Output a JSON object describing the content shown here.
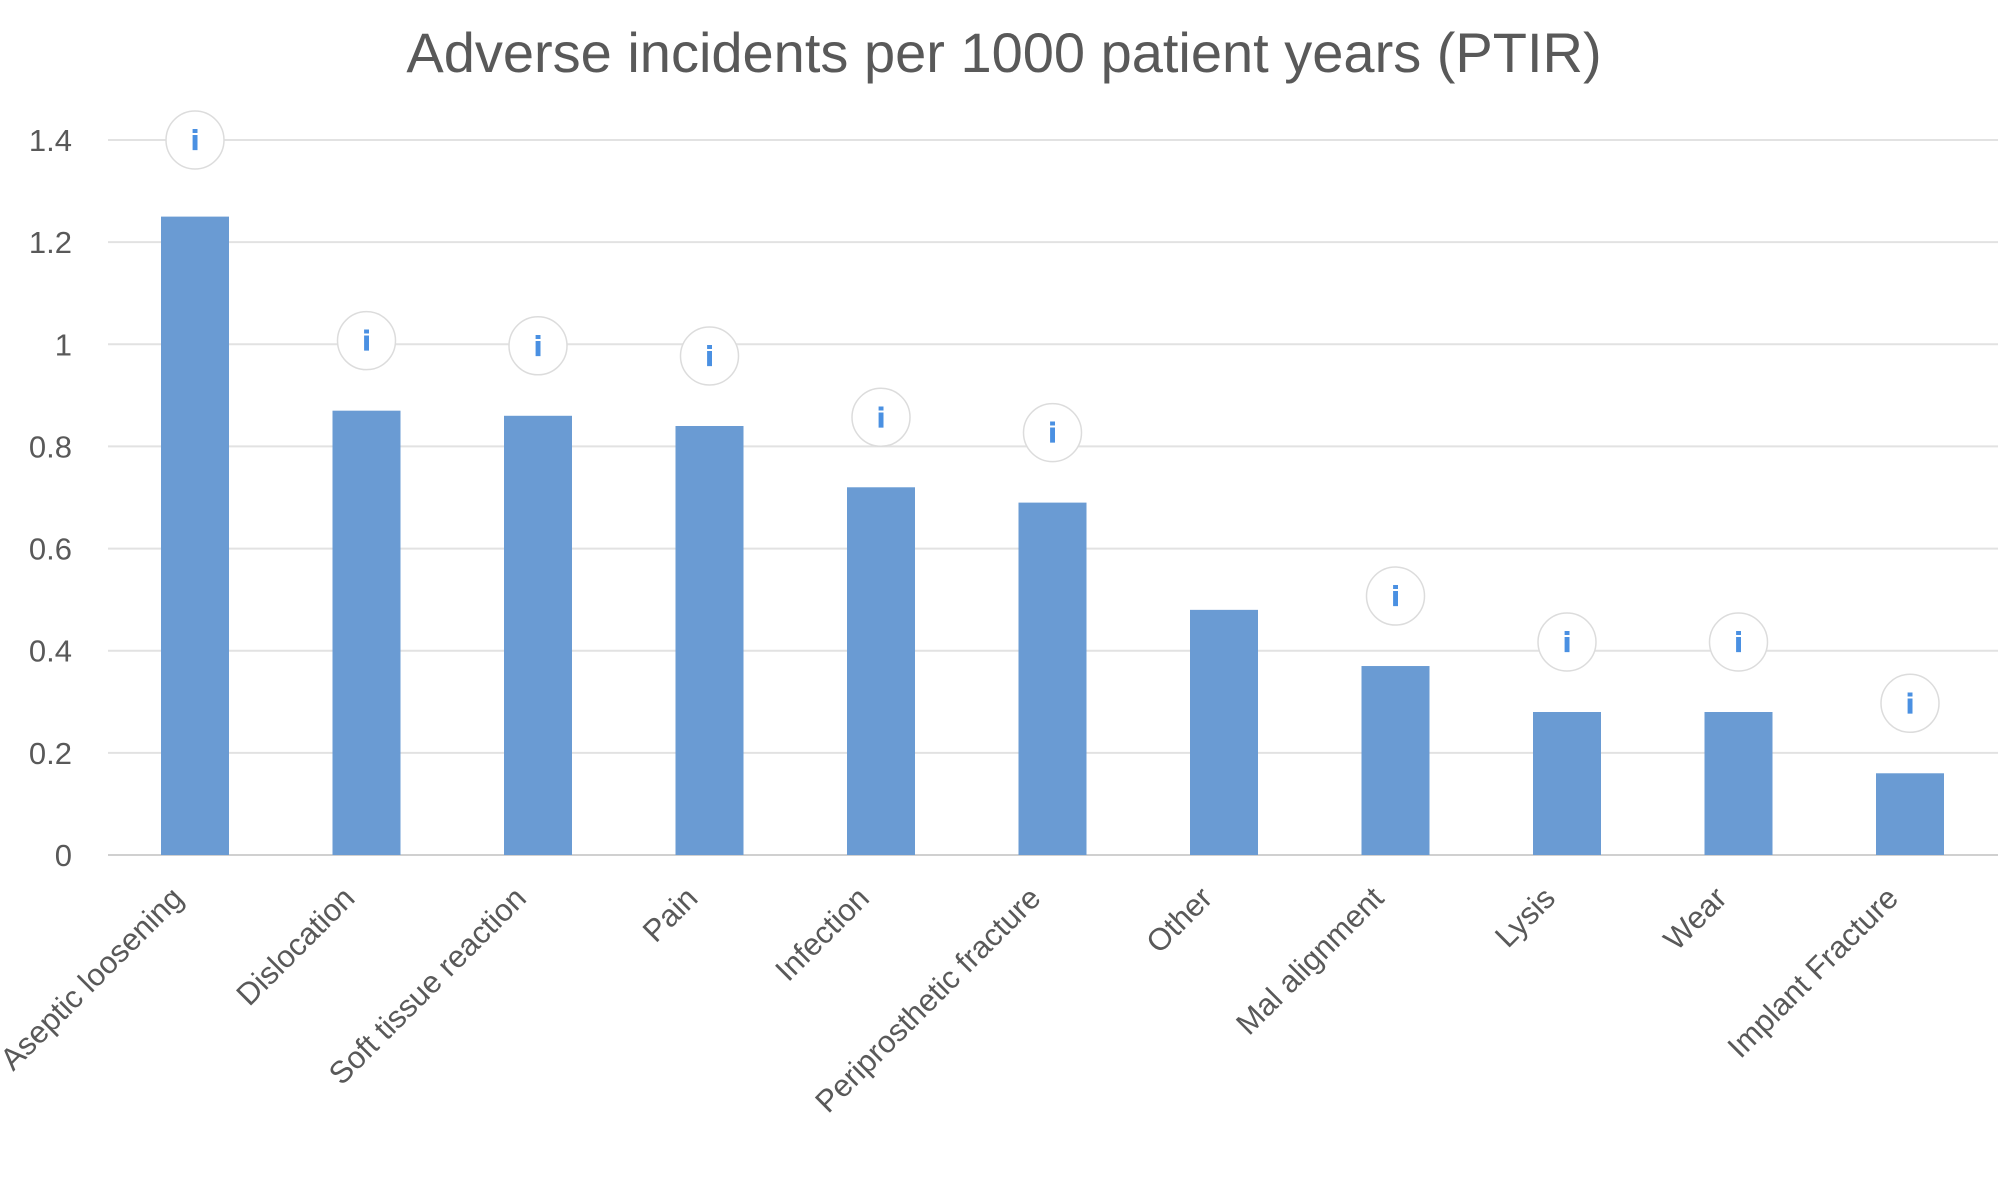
{
  "chart_data": {
    "type": "bar",
    "title": "Adverse incidents per 1000 patient years (PTIR)",
    "xlabel": "",
    "ylabel": "",
    "categories": [
      "Aseptic loosening",
      "Dislocation",
      "Soft tissue reaction",
      "Pain",
      "Infection",
      "Periprosthetic fracture",
      "Other",
      "Mal alignment",
      "Lysis",
      "Wear",
      "Implant Fracture"
    ],
    "values": [
      1.25,
      0.87,
      0.86,
      0.84,
      0.72,
      0.69,
      0.48,
      0.37,
      0.28,
      0.28,
      0.16
    ],
    "ylim": [
      0,
      1.4
    ],
    "yticks": [
      "0",
      "0.2",
      "0.4",
      "0.6",
      "0.8",
      "1",
      "1.2",
      "1.4"
    ],
    "grid": true,
    "legend": "none",
    "bar_color": "#6a9bd3",
    "info_markers": [
      true,
      true,
      true,
      true,
      true,
      true,
      false,
      true,
      true,
      true,
      true
    ],
    "info_icon": "info-icon",
    "info_glyph": "i"
  }
}
